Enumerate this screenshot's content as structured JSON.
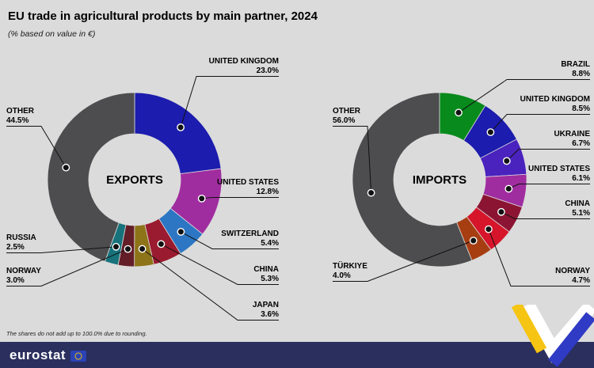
{
  "header": {
    "title": "EU trade in agricultural products by main partner, 2024",
    "subtitle": "(% based on value in €)"
  },
  "chart_data": [
    {
      "type": "pie",
      "subtype": "donut",
      "title": "EXPORTS",
      "unit": "%",
      "labels": [
        "UNITED KINGDOM",
        "UNITED STATES",
        "SWITZERLAND",
        "CHINA",
        "JAPAN",
        "NORWAY",
        "RUSSIA",
        "OTHER"
      ],
      "values": [
        23.0,
        12.8,
        5.4,
        5.3,
        3.6,
        3.0,
        2.5,
        44.5
      ],
      "colors": [
        "#1C1CAE",
        "#A02DA0",
        "#2C76C3",
        "#9A1B2F",
        "#8E7418",
        "#641E28",
        "#17727B",
        "#4D4D4F"
      ],
      "legend_position": "callout-labels"
    },
    {
      "type": "pie",
      "subtype": "donut",
      "title": "IMPORTS",
      "unit": "%",
      "labels": [
        "BRAZIL",
        "UNITED KINGDOM",
        "UKRAINE",
        "UNITED STATES",
        "CHINA",
        "NORWAY",
        "TÜRKIYE",
        "OTHER"
      ],
      "values": [
        8.8,
        8.5,
        6.7,
        6.1,
        5.1,
        4.7,
        4.0,
        56.0
      ],
      "colors": [
        "#088A1C",
        "#1C1CAE",
        "#4A22BE",
        "#A02DA0",
        "#8C1433",
        "#D6152B",
        "#A63E12",
        "#4D4D4F"
      ],
      "legend_position": "callout-labels"
    }
  ],
  "footnote": "The shares do not add up to 100.0% due to rounding.",
  "footer": {
    "brand": "eurostat"
  }
}
